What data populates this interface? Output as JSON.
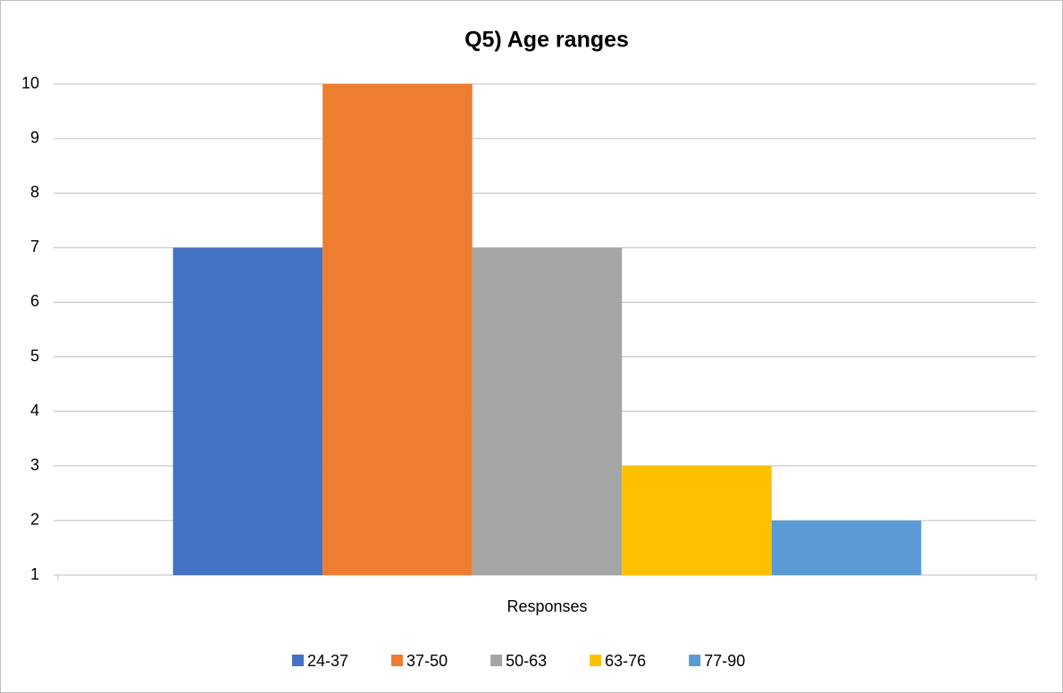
{
  "chart_data": {
    "type": "bar",
    "title": "Q5) Age ranges",
    "categories": [
      "Responses"
    ],
    "series": [
      {
        "name": "24-37",
        "color": "#4472c4",
        "values": [
          7
        ]
      },
      {
        "name": "37-50",
        "color": "#ed7d31",
        "values": [
          10
        ]
      },
      {
        "name": "50-63",
        "color": "#a5a5a5",
        "values": [
          7
        ]
      },
      {
        "name": "63-76",
        "color": "#ffc000",
        "values": [
          3
        ]
      },
      {
        "name": "77-90",
        "color": "#5b9bd5",
        "values": [
          2
        ]
      }
    ],
    "ylim": [
      1,
      10
    ],
    "yticks": [
      1,
      2,
      3,
      4,
      5,
      6,
      7,
      8,
      9,
      10
    ],
    "grid": true,
    "legend": "bottom"
  }
}
